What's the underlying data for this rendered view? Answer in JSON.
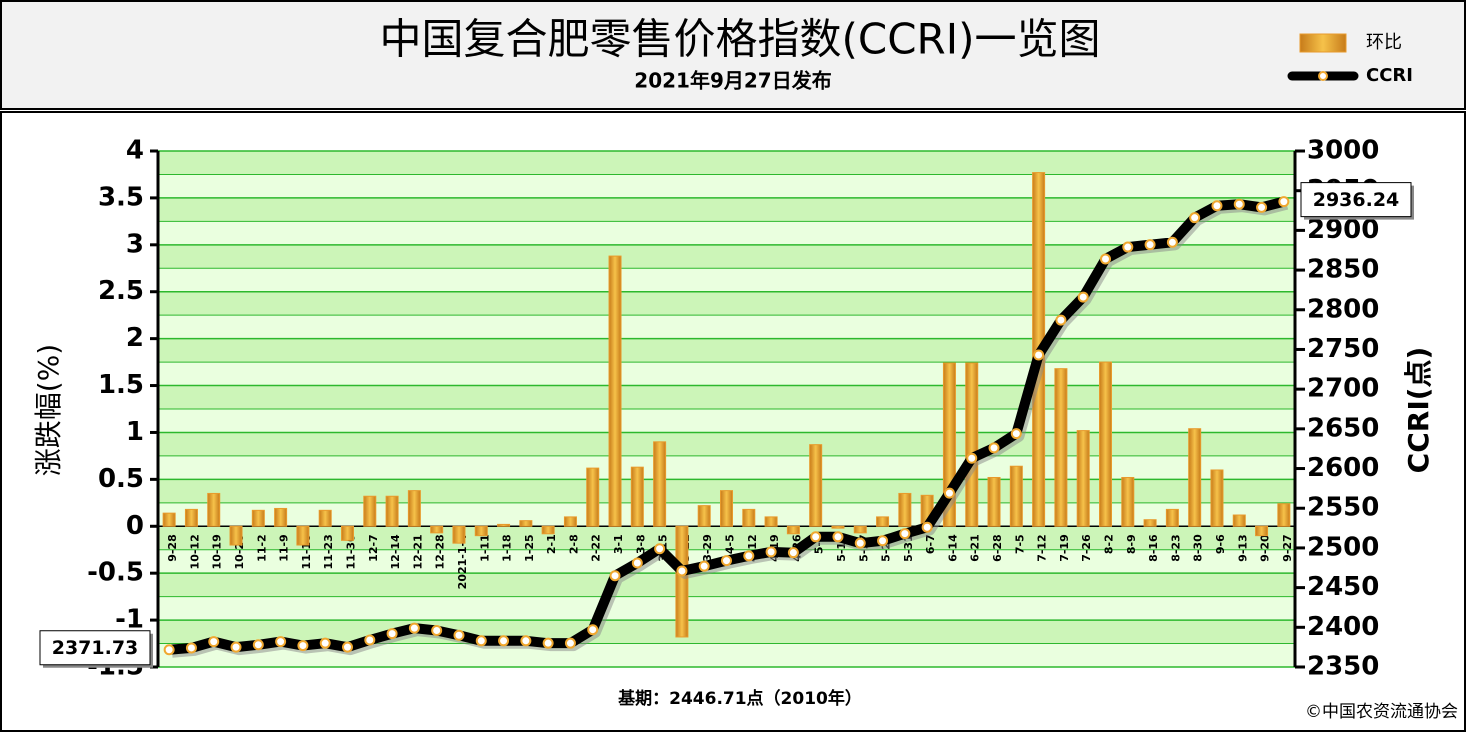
{
  "chart_data": {
    "type": "bar_line",
    "title": "中国复合肥零售价格指数(CCRI)一览图",
    "subtitle": "2021年9月27日发布",
    "ylabel": "涨跌幅(%)",
    "y2label": "CCRI(点)",
    "footnote": "基期：2446.71点（2010年）",
    "source": "©中国农资流通协会",
    "legend": "top-right",
    "grid": true,
    "categories": [
      "9-28",
      "10-12",
      "10-19",
      "10-26",
      "11-2",
      "11-9",
      "11-16",
      "11-23",
      "11-30",
      "12-7",
      "12-14",
      "12-21",
      "12-28",
      "2021-1-4",
      "1-11",
      "1-18",
      "1-25",
      "2-1",
      "2-8",
      "2-22",
      "3-1",
      "3-8",
      "3-15",
      "3-22",
      "3-29",
      "4-5",
      "4-12",
      "4-19",
      "4-26",
      "5-3",
      "5-10",
      "5-17",
      "5-24",
      "5-31",
      "6-7",
      "6-14",
      "6-21",
      "6-28",
      "7-5",
      "7-12",
      "7-19",
      "7-26",
      "8-2",
      "8-9",
      "8-16",
      "8-23",
      "8-30",
      "9-6",
      "9-13",
      "9-20",
      "9-27"
    ],
    "series": [
      {
        "name": "环比",
        "type": "bar",
        "color": "#e89a2c",
        "values": [
          0.14,
          0.18,
          0.35,
          -0.2,
          0.17,
          0.19,
          -0.2,
          0.17,
          -0.15,
          0.32,
          0.32,
          0.38,
          -0.07,
          -0.18,
          -0.1,
          0.02,
          0.06,
          -0.08,
          0.1,
          0.62,
          2.88,
          0.63,
          0.9,
          -1.18,
          0.22,
          0.38,
          0.18,
          0.1,
          -0.08,
          0.87,
          -0.02,
          -0.07,
          0.1,
          0.35,
          0.33,
          1.74,
          1.74,
          0.52,
          0.64,
          3.77,
          1.68,
          1.02,
          1.75,
          0.52,
          0.07,
          0.18,
          1.04,
          0.6,
          0.12,
          -0.1,
          0.24
        ]
      },
      {
        "name": "CCRI",
        "type": "line",
        "axis": "y2",
        "color": "#000000",
        "values": [
          2371.73,
          2374,
          2382,
          2375,
          2378,
          2382,
          2377,
          2380,
          2375,
          2384,
          2392,
          2399,
          2396,
          2390,
          2383,
          2383,
          2383,
          2380,
          2380,
          2397,
          2465,
          2481,
          2499,
          2471,
          2477,
          2484,
          2490,
          2495,
          2494,
          2514,
          2514,
          2506,
          2509,
          2518,
          2526,
          2569,
          2613,
          2626,
          2644,
          2743,
          2787,
          2816,
          2864,
          2879,
          2882,
          2885,
          2916,
          2931,
          2933,
          2929,
          2936.24
        ]
      }
    ],
    "ylim": [
      -1.5,
      4
    ],
    "yticks": [
      -1.5,
      -1,
      -0.5,
      0,
      0.5,
      1,
      1.5,
      2,
      2.5,
      3,
      3.5,
      4
    ],
    "y2lim": [
      2350,
      3000
    ],
    "y2ticks": [
      2350,
      2400,
      2450,
      2500,
      2550,
      2600,
      2650,
      2700,
      2750,
      2800,
      2850,
      2900,
      2950,
      3000
    ]
  }
}
